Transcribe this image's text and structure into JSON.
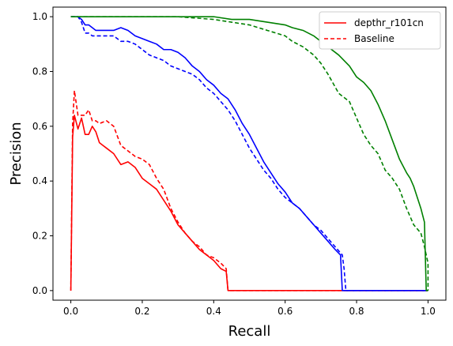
{
  "chart_data": {
    "type": "line",
    "xlabel": "Recall",
    "ylabel": "Precision",
    "xlim": [
      -0.05,
      1.05
    ],
    "ylim": [
      -0.035,
      1.035
    ],
    "xticks": [
      0.0,
      0.2,
      0.4,
      0.6,
      0.8,
      1.0
    ],
    "xtick_labels": [
      "0.0",
      "0.2",
      "0.4",
      "0.6",
      "0.8",
      "1.0"
    ],
    "yticks": [
      0.0,
      0.2,
      0.4,
      0.6,
      0.8,
      1.0
    ],
    "ytick_labels": [
      "0.0",
      "0.2",
      "0.4",
      "0.6",
      "0.8",
      "1.0"
    ],
    "grid": false,
    "legend_position": "top-right",
    "legend": [
      {
        "label": "depthr_r101cn",
        "color": "#ff0000",
        "dash": "solid"
      },
      {
        "label": "Baseline",
        "color": "#ff0000",
        "dash": "dashed"
      }
    ],
    "series": [
      {
        "color": "#ff0000",
        "dash": "solid",
        "x": [
          0.0,
          0.005,
          0.01,
          0.02,
          0.03,
          0.04,
          0.05,
          0.06,
          0.07,
          0.08,
          0.09,
          0.1,
          0.12,
          0.14,
          0.16,
          0.18,
          0.2,
          0.22,
          0.24,
          0.26,
          0.28,
          0.3,
          0.32,
          0.34,
          0.36,
          0.38,
          0.4,
          0.42,
          0.435,
          0.44,
          0.6,
          0.8,
          1.0
        ],
        "y": [
          0.0,
          0.56,
          0.64,
          0.59,
          0.63,
          0.57,
          0.57,
          0.6,
          0.58,
          0.54,
          0.53,
          0.52,
          0.5,
          0.46,
          0.47,
          0.45,
          0.41,
          0.39,
          0.37,
          0.33,
          0.29,
          0.24,
          0.21,
          0.18,
          0.15,
          0.13,
          0.11,
          0.08,
          0.07,
          0.0,
          0.0,
          0.0,
          0.0
        ]
      },
      {
        "color": "#ff0000",
        "dash": "dashed",
        "x": [
          0.0,
          0.005,
          0.01,
          0.02,
          0.03,
          0.04,
          0.05,
          0.06,
          0.07,
          0.08,
          0.1,
          0.12,
          0.14,
          0.16,
          0.18,
          0.2,
          0.22,
          0.24,
          0.26,
          0.28,
          0.3,
          0.32,
          0.34,
          0.36,
          0.38,
          0.4,
          0.42,
          0.435,
          0.44,
          0.6,
          0.8,
          1.0
        ],
        "y": [
          0.0,
          0.61,
          0.73,
          0.64,
          0.64,
          0.64,
          0.66,
          0.62,
          0.62,
          0.61,
          0.62,
          0.6,
          0.53,
          0.51,
          0.49,
          0.48,
          0.46,
          0.41,
          0.37,
          0.3,
          0.25,
          0.21,
          0.18,
          0.16,
          0.13,
          0.12,
          0.1,
          0.08,
          0.0,
          0.0,
          0.0,
          0.0
        ]
      },
      {
        "color": "#0000ff",
        "dash": "solid",
        "x": [
          0.0,
          0.02,
          0.03,
          0.04,
          0.05,
          0.06,
          0.07,
          0.08,
          0.1,
          0.12,
          0.14,
          0.16,
          0.18,
          0.2,
          0.22,
          0.24,
          0.26,
          0.28,
          0.3,
          0.32,
          0.34,
          0.36,
          0.38,
          0.4,
          0.42,
          0.44,
          0.46,
          0.48,
          0.5,
          0.52,
          0.54,
          0.56,
          0.58,
          0.6,
          0.62,
          0.64,
          0.66,
          0.68,
          0.7,
          0.72,
          0.74,
          0.755,
          0.76,
          0.8,
          0.9,
          1.0
        ],
        "y": [
          1.0,
          1.0,
          0.99,
          0.97,
          0.97,
          0.96,
          0.95,
          0.95,
          0.95,
          0.95,
          0.96,
          0.95,
          0.93,
          0.92,
          0.91,
          0.9,
          0.88,
          0.88,
          0.87,
          0.85,
          0.82,
          0.8,
          0.77,
          0.75,
          0.72,
          0.7,
          0.66,
          0.61,
          0.57,
          0.52,
          0.47,
          0.43,
          0.39,
          0.36,
          0.32,
          0.3,
          0.27,
          0.24,
          0.21,
          0.18,
          0.15,
          0.13,
          0.0,
          0.0,
          0.0,
          0.0
        ]
      },
      {
        "color": "#0000ff",
        "dash": "dashed",
        "x": [
          0.0,
          0.02,
          0.03,
          0.04,
          0.05,
          0.06,
          0.08,
          0.1,
          0.12,
          0.14,
          0.16,
          0.18,
          0.2,
          0.22,
          0.24,
          0.26,
          0.28,
          0.3,
          0.32,
          0.34,
          0.36,
          0.38,
          0.4,
          0.42,
          0.44,
          0.46,
          0.48,
          0.5,
          0.52,
          0.54,
          0.56,
          0.58,
          0.6,
          0.62,
          0.64,
          0.66,
          0.68,
          0.7,
          0.72,
          0.74,
          0.76,
          0.765,
          0.77,
          0.8,
          0.9,
          1.0
        ],
        "y": [
          1.0,
          1.0,
          0.98,
          0.94,
          0.94,
          0.93,
          0.93,
          0.93,
          0.93,
          0.91,
          0.91,
          0.9,
          0.88,
          0.86,
          0.85,
          0.84,
          0.82,
          0.81,
          0.8,
          0.79,
          0.77,
          0.74,
          0.72,
          0.69,
          0.66,
          0.62,
          0.57,
          0.52,
          0.48,
          0.44,
          0.41,
          0.37,
          0.34,
          0.32,
          0.3,
          0.27,
          0.24,
          0.22,
          0.19,
          0.16,
          0.13,
          0.08,
          0.0,
          0.0,
          0.0,
          0.0
        ]
      },
      {
        "color": "#008000",
        "dash": "solid",
        "x": [
          0.0,
          0.2,
          0.3,
          0.4,
          0.45,
          0.5,
          0.55,
          0.6,
          0.62,
          0.65,
          0.68,
          0.7,
          0.72,
          0.75,
          0.78,
          0.8,
          0.82,
          0.84,
          0.86,
          0.88,
          0.9,
          0.92,
          0.94,
          0.95,
          0.96,
          0.97,
          0.98,
          0.99,
          0.995,
          1.0
        ],
        "y": [
          1.0,
          1.0,
          1.0,
          1.0,
          0.99,
          0.99,
          0.98,
          0.97,
          0.96,
          0.95,
          0.93,
          0.91,
          0.89,
          0.86,
          0.82,
          0.78,
          0.76,
          0.73,
          0.68,
          0.62,
          0.55,
          0.48,
          0.43,
          0.41,
          0.38,
          0.34,
          0.3,
          0.25,
          0.0,
          0.0
        ]
      },
      {
        "color": "#008000",
        "dash": "dashed",
        "x": [
          0.0,
          0.2,
          0.3,
          0.4,
          0.45,
          0.5,
          0.55,
          0.6,
          0.62,
          0.65,
          0.68,
          0.7,
          0.72,
          0.75,
          0.78,
          0.8,
          0.82,
          0.84,
          0.86,
          0.88,
          0.9,
          0.92,
          0.94,
          0.96,
          0.98,
          0.99,
          1.0,
          1.0
        ],
        "y": [
          1.0,
          1.0,
          1.0,
          0.99,
          0.98,
          0.97,
          0.95,
          0.93,
          0.91,
          0.89,
          0.86,
          0.83,
          0.79,
          0.72,
          0.69,
          0.63,
          0.57,
          0.53,
          0.5,
          0.44,
          0.41,
          0.37,
          0.3,
          0.24,
          0.21,
          0.16,
          0.1,
          0.0
        ]
      }
    ]
  }
}
